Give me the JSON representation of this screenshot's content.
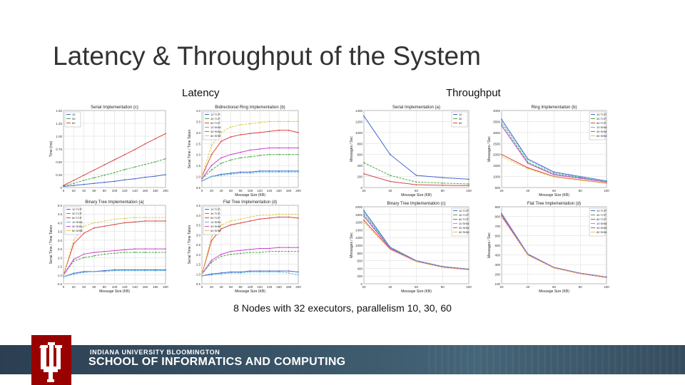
{
  "slide": {
    "title": "Latency & Throughput of the System",
    "latency_label": "Latency",
    "throughput_label": "Throughput",
    "caption": "8 Nodes with 32 executors, parallelism 10, 30, 60"
  },
  "footer": {
    "university": "INDIANA UNIVERSITY BLOOMINGTON",
    "school": "SCHOOL OF INFORMATICS AND COMPUTING",
    "logo_color": "#990000"
  },
  "chart_data": [
    {
      "type": "line",
      "title": "Serial Implementation (c)",
      "ylabel": "Time (ms)",
      "xlabel": "",
      "x": [
        0,
        20,
        40,
        60,
        80,
        100,
        120,
        140,
        160,
        180,
        200
      ],
      "x_ticks": [
        "0",
        "20",
        "40",
        "60",
        "80",
        "100",
        "120",
        "140",
        "160",
        "180",
        "200"
      ],
      "ylim": [
        0,
        1.5
      ],
      "y_ticks": [
        "0",
        "0.25",
        "0.50",
        "0.75",
        "1.00",
        "1.25",
        "1.50"
      ],
      "series": [
        {
          "name": "10",
          "color": "#4466cc",
          "values": [
            0.02,
            0.04,
            0.06,
            0.08,
            0.1,
            0.12,
            0.15,
            0.17,
            0.2,
            0.22,
            0.25
          ]
        },
        {
          "name": "30",
          "color": "#44aa44",
          "values": [
            0.03,
            0.08,
            0.14,
            0.19,
            0.24,
            0.29,
            0.35,
            0.4,
            0.45,
            0.5,
            0.56
          ]
        },
        {
          "name": "60",
          "color": "#dd4444",
          "values": [
            0.04,
            0.14,
            0.24,
            0.34,
            0.44,
            0.54,
            0.64,
            0.74,
            0.85,
            0.95,
            1.05
          ]
        }
      ]
    },
    {
      "type": "line",
      "title": "Bidirectional Ring Implementation (b)",
      "ylabel": "Serial Time / Time Taken",
      "xlabel": "Message Size (KB)",
      "x": [
        0,
        20,
        40,
        60,
        80,
        100,
        120,
        140,
        160,
        180,
        200
      ],
      "x_ticks": [
        "0",
        "20",
        "40",
        "60",
        "80",
        "100",
        "120",
        "140",
        "160",
        "180",
        "200"
      ],
      "ylim": [
        0.5,
        4.0
      ],
      "y_ticks": [
        "0.5",
        "1.0",
        "1.5",
        "2.0",
        "2.5",
        "3.0",
        "3.5",
        "4.0"
      ],
      "series": [
        {
          "name": "10 TCP",
          "color": "#4466cc",
          "values": [
            0.8,
            1.0,
            1.1,
            1.15,
            1.2,
            1.2,
            1.25,
            1.25,
            1.25,
            1.25,
            1.25
          ]
        },
        {
          "name": "30 TCP",
          "color": "#44aa44",
          "values": [
            0.9,
            1.3,
            1.6,
            1.75,
            1.85,
            1.9,
            1.95,
            2.0,
            2.0,
            2.0,
            2.0
          ]
        },
        {
          "name": "60 TCP",
          "color": "#dd4444",
          "values": [
            1.0,
            2.0,
            2.6,
            2.8,
            2.9,
            2.95,
            3.0,
            3.05,
            3.1,
            3.1,
            3.0
          ]
        },
        {
          "name": "10 SHM",
          "color": "#55bbdd",
          "values": [
            0.8,
            1.0,
            1.05,
            1.1,
            1.15,
            1.15,
            1.2,
            1.2,
            1.2,
            1.2,
            1.2
          ]
        },
        {
          "name": "30 SHM",
          "color": "#cc44cc",
          "values": [
            0.9,
            1.5,
            1.85,
            2.0,
            2.1,
            2.2,
            2.25,
            2.3,
            2.3,
            2.3,
            2.3
          ]
        },
        {
          "name": "60 SHM",
          "color": "#ddcc44",
          "values": [
            1.0,
            2.4,
            3.0,
            3.25,
            3.35,
            3.4,
            3.45,
            3.5,
            3.5,
            3.5,
            3.5
          ]
        }
      ]
    },
    {
      "type": "line",
      "title": "Serial Implementation (a)",
      "ylabel": "Messages / Sec",
      "xlabel": "Message Size (KB)",
      "x": [
        20,
        40,
        60,
        80,
        100
      ],
      "x_ticks": [
        "20",
        "40",
        "60",
        "80",
        "100"
      ],
      "ylim": [
        0,
        1400
      ],
      "y_ticks": [
        "0",
        "200",
        "400",
        "600",
        "800",
        "1000",
        "1200",
        "1400"
      ],
      "series": [
        {
          "name": "10",
          "color": "#4466cc",
          "values": [
            1300,
            600,
            220,
            180,
            150
          ]
        },
        {
          "name": "30",
          "color": "#44aa44",
          "values": [
            450,
            220,
            100,
            80,
            65
          ]
        },
        {
          "name": "60",
          "color": "#dd4444",
          "values": [
            250,
            110,
            50,
            40,
            35
          ]
        }
      ]
    },
    {
      "type": "line",
      "title": "Ring Implementation (b)",
      "ylabel": "Messages / Sec",
      "xlabel": "Message Size (KB)",
      "x": [
        20,
        40,
        60,
        80,
        100
      ],
      "x_ticks": [
        "20",
        "40",
        "60",
        "80",
        "100"
      ],
      "ylim": [
        500,
        4000
      ],
      "y_ticks": [
        "500",
        "1000",
        "1500",
        "2000",
        "2500",
        "3000",
        "3500",
        "4000"
      ],
      "series": [
        {
          "name": "10 TCP",
          "color": "#4466cc",
          "values": [
            3600,
            1800,
            1200,
            1000,
            800
          ]
        },
        {
          "name": "30 TCP",
          "color": "#44aa44",
          "values": [
            3400,
            1650,
            1100,
            950,
            760
          ]
        },
        {
          "name": "60 TCP",
          "color": "#dd4444",
          "values": [
            2000,
            1400,
            1000,
            850,
            700
          ]
        },
        {
          "name": "10 SHM",
          "color": "#55bbdd",
          "values": [
            3500,
            1750,
            1150,
            980,
            790
          ]
        },
        {
          "name": "30 SHM",
          "color": "#cc44cc",
          "values": [
            3300,
            1600,
            1080,
            920,
            750
          ]
        },
        {
          "name": "60 SHM",
          "color": "#ddcc44",
          "values": [
            1900,
            1350,
            980,
            830,
            690
          ]
        }
      ]
    },
    {
      "type": "line",
      "title": "Binary Tree Implementation (a)",
      "ylabel": "Serial Time / Time Taken",
      "xlabel": "Message Size (KB)",
      "x": [
        0,
        20,
        40,
        60,
        80,
        100,
        120,
        140,
        160,
        180,
        200
      ],
      "x_ticks": [
        "0",
        "20",
        "40",
        "60",
        "80",
        "100",
        "120",
        "140",
        "160",
        "180",
        "200"
      ],
      "ylim": [
        0.5,
        5.0
      ],
      "y_ticks": [
        "0.5",
        "1.0",
        "1.5",
        "2.0",
        "2.5",
        "3.0",
        "3.5",
        "4.0",
        "4.5",
        "5.0"
      ],
      "series": [
        {
          "name": "10 TCP",
          "color": "#4466cc",
          "values": [
            0.9,
            1.1,
            1.2,
            1.2,
            1.25,
            1.3,
            1.3,
            1.3,
            1.3,
            1.3,
            1.3
          ]
        },
        {
          "name": "30 TCP",
          "color": "#44aa44",
          "values": [
            1.0,
            1.8,
            2.0,
            2.1,
            2.2,
            2.25,
            2.3,
            2.3,
            2.3,
            2.3,
            2.3
          ]
        },
        {
          "name": "60 TCP",
          "color": "#dd4444",
          "values": [
            1.0,
            2.8,
            3.4,
            3.7,
            3.8,
            3.9,
            4.0,
            4.05,
            4.1,
            4.1,
            4.1
          ]
        },
        {
          "name": "10 SHM",
          "color": "#55bbdd",
          "values": [
            0.9,
            1.05,
            1.15,
            1.2,
            1.2,
            1.25,
            1.25,
            1.25,
            1.25,
            1.25,
            1.25
          ]
        },
        {
          "name": "30 SHM",
          "color": "#cc44cc",
          "values": [
            1.0,
            1.9,
            2.2,
            2.3,
            2.35,
            2.4,
            2.45,
            2.5,
            2.5,
            2.5,
            2.5
          ]
        },
        {
          "name": "60 SHM",
          "color": "#ddcc44",
          "values": [
            1.0,
            3.0,
            3.8,
            4.0,
            4.1,
            4.2,
            4.25,
            4.3,
            4.3,
            4.3,
            4.3
          ]
        }
      ]
    },
    {
      "type": "line",
      "title": "Flat Tree Implementation (d)",
      "ylabel": "Serial Time / Time Taken",
      "xlabel": "Message Size (KB)",
      "x": [
        0,
        20,
        40,
        60,
        80,
        100,
        120,
        140,
        160,
        180,
        200
      ],
      "x_ticks": [
        "0",
        "20",
        "40",
        "60",
        "80",
        "100",
        "120",
        "140",
        "160",
        "180",
        "200"
      ],
      "ylim": [
        0.5,
        4.5
      ],
      "y_ticks": [
        "0.5",
        "1.0",
        "1.5",
        "2.0",
        "2.5",
        "3.0",
        "3.5",
        "4.0",
        "4.5"
      ],
      "series": [
        {
          "name": "10 TCP",
          "color": "#4466cc",
          "values": [
            0.9,
            1.0,
            1.05,
            1.1,
            1.1,
            1.15,
            1.15,
            1.15,
            1.15,
            1.15,
            1.1
          ]
        },
        {
          "name": "30 TCP",
          "color": "#44aa44",
          "values": [
            1.0,
            1.6,
            1.9,
            2.0,
            2.05,
            2.1,
            2.1,
            2.15,
            2.15,
            2.15,
            2.15
          ]
        },
        {
          "name": "60 TCP",
          "color": "#dd4444",
          "values": [
            1.0,
            2.7,
            3.3,
            3.5,
            3.6,
            3.7,
            3.8,
            3.85,
            3.9,
            3.9,
            3.85
          ]
        },
        {
          "name": "10 SHM",
          "color": "#55bbdd",
          "values": [
            0.9,
            0.95,
            1.0,
            1.05,
            1.05,
            1.1,
            1.1,
            1.1,
            1.1,
            1.05,
            0.95
          ]
        },
        {
          "name": "30 SHM",
          "color": "#cc44cc",
          "values": [
            1.0,
            1.7,
            2.0,
            2.15,
            2.2,
            2.25,
            2.3,
            2.3,
            2.35,
            2.35,
            2.35
          ]
        },
        {
          "name": "60 SHM",
          "color": "#ddcc44",
          "values": [
            1.0,
            2.9,
            3.5,
            3.7,
            3.8,
            3.9,
            4.0,
            4.0,
            4.05,
            4.05,
            4.05
          ]
        }
      ]
    },
    {
      "type": "line",
      "title": "Binary Tree Implementation (c)",
      "ylabel": "Messages / Sec",
      "xlabel": "Message Size (KB)",
      "x": [
        20,
        40,
        60,
        80,
        100
      ],
      "x_ticks": [
        "20",
        "40",
        "60",
        "80",
        "100"
      ],
      "ylim": [
        0,
        2000
      ],
      "y_ticks": [
        "0",
        "200",
        "400",
        "600",
        "800",
        "1000",
        "1200",
        "1400",
        "1600",
        "1800",
        "2000"
      ],
      "series": [
        {
          "name": "10 TCP",
          "color": "#4466cc",
          "values": [
            1900,
            950,
            600,
            450,
            380
          ]
        },
        {
          "name": "30 TCP",
          "color": "#44aa44",
          "values": [
            1800,
            930,
            590,
            440,
            370
          ]
        },
        {
          "name": "60 TCP",
          "color": "#dd4444",
          "values": [
            1650,
            900,
            580,
            430,
            365
          ]
        },
        {
          "name": "10 SHM",
          "color": "#55bbdd",
          "values": [
            1850,
            940,
            595,
            445,
            375
          ]
        },
        {
          "name": "30 SHM",
          "color": "#cc44cc",
          "values": [
            1750,
            920,
            585,
            435,
            368
          ]
        },
        {
          "name": "60 SHM",
          "color": "#ddcc44",
          "values": [
            1600,
            890,
            575,
            428,
            362
          ]
        }
      ]
    },
    {
      "type": "line",
      "title": "Flat Tree Implementation (d)",
      "ylabel": "Messages / Sec",
      "xlabel": "Message Size (KB)",
      "x": [
        20,
        40,
        60,
        80,
        100
      ],
      "x_ticks": [
        "20",
        "40",
        "60",
        "80",
        "100"
      ],
      "ylim": [
        100,
        900
      ],
      "y_ticks": [
        "100",
        "200",
        "300",
        "400",
        "500",
        "600",
        "700",
        "800",
        "900"
      ],
      "series": [
        {
          "name": "10 TCP",
          "color": "#4466cc",
          "values": [
            830,
            410,
            270,
            210,
            170
          ]
        },
        {
          "name": "30 TCP",
          "color": "#44aa44",
          "values": [
            820,
            405,
            268,
            208,
            168
          ]
        },
        {
          "name": "60 TCP",
          "color": "#dd4444",
          "values": [
            800,
            400,
            265,
            205,
            165
          ]
        },
        {
          "name": "10 SHM",
          "color": "#55bbdd",
          "values": [
            825,
            408,
            269,
            209,
            169
          ]
        },
        {
          "name": "30 SHM",
          "color": "#cc44cc",
          "values": [
            815,
            403,
            267,
            207,
            167
          ]
        },
        {
          "name": "60 SHM",
          "color": "#ddcc44",
          "values": [
            795,
            398,
            263,
            204,
            164
          ]
        }
      ]
    }
  ]
}
